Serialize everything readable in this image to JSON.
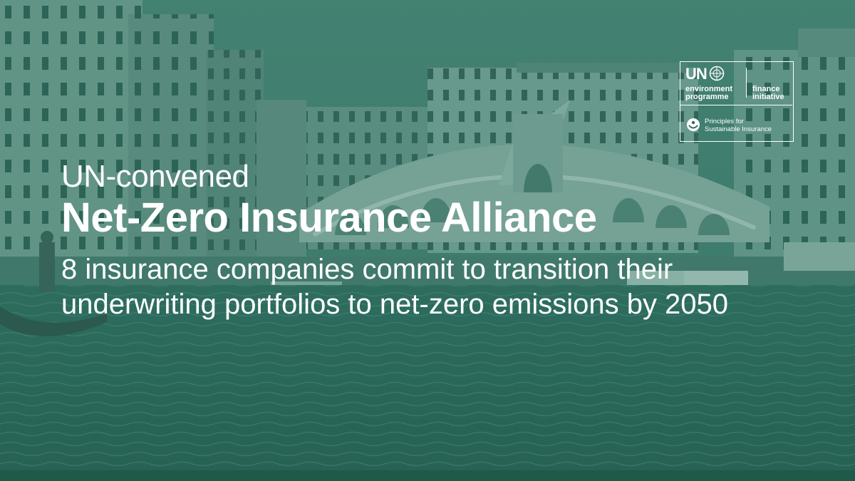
{
  "headline": {
    "kicker": "UN-convened",
    "title": "Net-Zero Insurance Alliance",
    "description": "8 insurance companies commit to transition their underwriting portfolios to net-zero emissions by 2050"
  },
  "logo": {
    "un": "UN",
    "environment": "environment",
    "programme": "programme",
    "finance": "finance",
    "initiative": "initiative",
    "psi_line1": "Principles for",
    "psi_line2": "Sustainable Insurance"
  },
  "colors": {
    "overlay": "#2f6b5e",
    "text": "#ffffff",
    "bottom_bar": "#1f5a48"
  },
  "icons": [
    "un-emblem-icon",
    "psi-icon"
  ]
}
